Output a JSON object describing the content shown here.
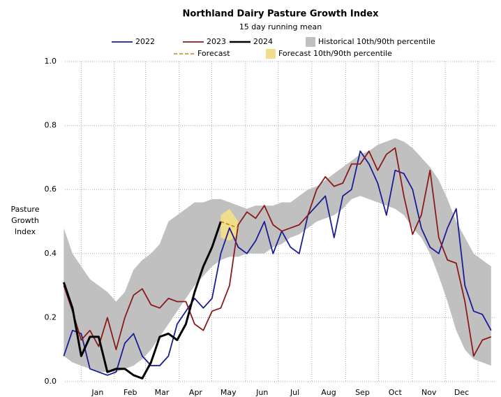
{
  "chart_data": {
    "type": "line",
    "title": "Northland Dairy Pasture Growth Index",
    "subtitle": "15 day running mean",
    "y_label": "Pasture Growth Index",
    "x": [
      -16,
      -8,
      0,
      8,
      16,
      24,
      32,
      40,
      48,
      56,
      64,
      72,
      80,
      88,
      96,
      104,
      112,
      120,
      128,
      136,
      144,
      152,
      160,
      168,
      176,
      184,
      192,
      200,
      208,
      216,
      224,
      232,
      240,
      248,
      256,
      264,
      272,
      280,
      288,
      296,
      304,
      312,
      320,
      328,
      336,
      344,
      352,
      360,
      368,
      376
    ],
    "xlim": [
      -15,
      380
    ],
    "xticks": [
      {
        "value": 15,
        "label": "Jan"
      },
      {
        "value": 45,
        "label": "Feb"
      },
      {
        "value": 74,
        "label": "Mar"
      },
      {
        "value": 105,
        "label": "Apr"
      },
      {
        "value": 135,
        "label": "May"
      },
      {
        "value": 166,
        "label": "Jun"
      },
      {
        "value": 196,
        "label": "Jul"
      },
      {
        "value": 227,
        "label": "Aug"
      },
      {
        "value": 258,
        "label": "Sep"
      },
      {
        "value": 288,
        "label": "Oct"
      },
      {
        "value": 319,
        "label": "Nov"
      },
      {
        "value": 349,
        "label": "Dec"
      }
    ],
    "ylim": [
      0,
      1
    ],
    "yticks": [
      {
        "value": 0,
        "label": "0.0"
      },
      0.2,
      0.4,
      0.6,
      0.8,
      {
        "value": 1,
        "label": "1.0"
      }
    ],
    "grid": true,
    "bands": [
      {
        "name": "Historical 10th/90th percentile",
        "color": "#c0c0c0",
        "upper": [
          0.48,
          0.4,
          0.36,
          0.32,
          0.3,
          0.28,
          0.25,
          0.28,
          0.35,
          0.38,
          0.4,
          0.43,
          0.5,
          0.52,
          0.54,
          0.56,
          0.56,
          0.57,
          0.57,
          0.56,
          0.55,
          0.54,
          0.55,
          0.55,
          0.55,
          0.56,
          0.56,
          0.58,
          0.6,
          0.61,
          0.63,
          0.65,
          0.67,
          0.69,
          0.71,
          0.72,
          0.74,
          0.75,
          0.76,
          0.75,
          0.73,
          0.7,
          0.67,
          0.63,
          0.57,
          0.5,
          0.45,
          0.4,
          0.38,
          0.36
        ],
        "lower": [
          0.08,
          0.06,
          0.05,
          0.04,
          0.03,
          0.03,
          0.03,
          0.04,
          0.05,
          0.07,
          0.1,
          0.14,
          0.18,
          0.22,
          0.26,
          0.3,
          0.33,
          0.36,
          0.38,
          0.39,
          0.39,
          0.4,
          0.4,
          0.4,
          0.42,
          0.43,
          0.45,
          0.46,
          0.48,
          0.5,
          0.51,
          0.52,
          0.54,
          0.57,
          0.58,
          0.57,
          0.56,
          0.55,
          0.54,
          0.52,
          0.48,
          0.45,
          0.4,
          0.33,
          0.25,
          0.16,
          0.1,
          0.07,
          0.06,
          0.05
        ]
      },
      {
        "name": "Forecast 10th/90th percentile",
        "color": "#f0de8c",
        "upper": [
          null,
          null,
          null,
          null,
          null,
          null,
          null,
          null,
          null,
          null,
          null,
          null,
          null,
          null,
          null,
          null,
          null,
          null,
          0.52,
          0.54,
          0.5,
          null,
          null,
          null,
          null,
          null,
          null,
          null,
          null,
          null,
          null,
          null,
          null,
          null,
          null,
          null,
          null,
          null,
          null,
          null,
          null,
          null,
          null,
          null,
          null,
          null,
          null,
          null,
          null,
          null
        ],
        "lower": [
          null,
          null,
          null,
          null,
          null,
          null,
          null,
          null,
          null,
          null,
          null,
          null,
          null,
          null,
          null,
          null,
          null,
          null,
          0.45,
          0.44,
          0.46,
          null,
          null,
          null,
          null,
          null,
          null,
          null,
          null,
          null,
          null,
          null,
          null,
          null,
          null,
          null,
          null,
          null,
          null,
          null,
          null,
          null,
          null,
          null,
          null,
          null,
          null,
          null,
          null,
          null
        ]
      }
    ],
    "series": [
      {
        "name": "2022",
        "color": "#1c1c96",
        "width": 1.8,
        "values": [
          0.08,
          0.16,
          0.15,
          0.04,
          0.03,
          0.02,
          0.03,
          0.12,
          0.15,
          0.08,
          0.05,
          0.05,
          0.08,
          0.18,
          0.22,
          0.26,
          0.23,
          0.26,
          0.4,
          0.48,
          0.42,
          0.4,
          0.44,
          0.5,
          0.4,
          0.47,
          0.42,
          0.4,
          0.52,
          0.55,
          0.58,
          0.45,
          0.58,
          0.6,
          0.72,
          0.68,
          0.62,
          0.52,
          0.66,
          0.65,
          0.6,
          0.48,
          0.42,
          0.4,
          0.48,
          0.54,
          0.3,
          0.22,
          0.21,
          0.16
        ]
      },
      {
        "name": "2023",
        "color": "#8b1a1a",
        "width": 1.8,
        "values": [
          0.3,
          0.22,
          0.13,
          0.16,
          0.11,
          0.2,
          0.1,
          0.2,
          0.27,
          0.29,
          0.24,
          0.23,
          0.26,
          0.25,
          0.25,
          0.18,
          0.16,
          0.22,
          0.23,
          0.3,
          0.49,
          0.53,
          0.51,
          0.55,
          0.49,
          0.47,
          0.48,
          0.49,
          0.52,
          0.6,
          0.64,
          0.61,
          0.62,
          0.68,
          0.68,
          0.72,
          0.66,
          0.71,
          0.73,
          0.58,
          0.46,
          0.52,
          0.66,
          0.45,
          0.38,
          0.37,
          0.25,
          0.08,
          0.13,
          0.14
        ]
      },
      {
        "name": "2024",
        "color": "#000000",
        "width": 3,
        "values": [
          0.31,
          0.23,
          0.08,
          0.14,
          0.14,
          0.03,
          0.04,
          0.04,
          0.02,
          0.01,
          0.06,
          0.14,
          0.15,
          0.13,
          0.18,
          0.28,
          0.36,
          0.42,
          0.5,
          null,
          null,
          null,
          null,
          null,
          null,
          null,
          null,
          null,
          null,
          null,
          null,
          null,
          null,
          null,
          null,
          null,
          null,
          null,
          null,
          null,
          null,
          null,
          null,
          null,
          null,
          null,
          null,
          null,
          null,
          null
        ]
      },
      {
        "name": "Forecast",
        "color": "#b8860b",
        "width": 1.5,
        "dashed": true,
        "values": [
          null,
          null,
          null,
          null,
          null,
          null,
          null,
          null,
          null,
          null,
          null,
          null,
          null,
          null,
          null,
          null,
          null,
          null,
          0.5,
          0.49,
          0.48,
          null,
          null,
          null,
          null,
          null,
          null,
          null,
          null,
          null,
          null,
          null,
          null,
          null,
          null,
          null,
          null,
          null,
          null,
          null,
          null,
          null,
          null,
          null,
          null,
          null,
          null,
          null,
          null,
          null
        ]
      }
    ]
  }
}
